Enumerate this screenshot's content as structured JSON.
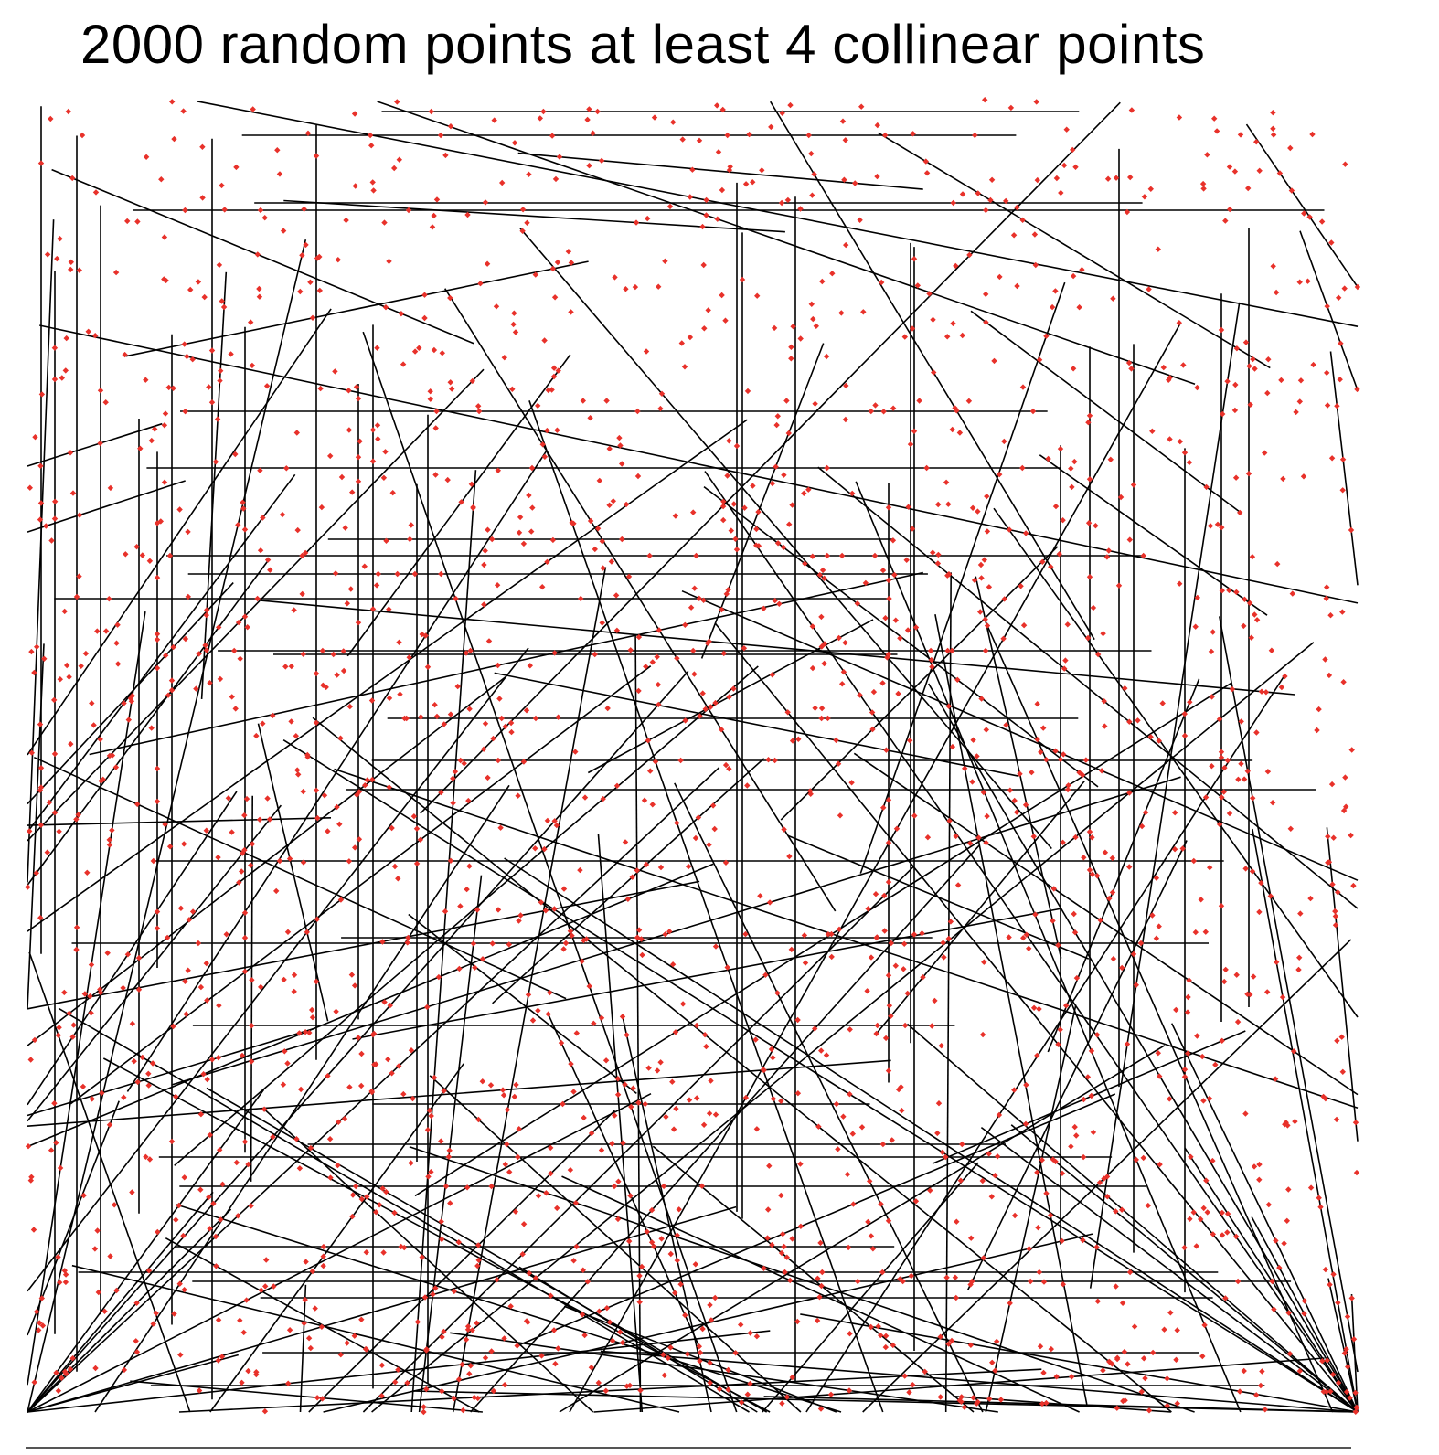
{
  "title": "2000 random points at least 4 collinear points",
  "colors": {
    "point": "#e8312a",
    "segment": "#000000",
    "background": "#ffffff"
  },
  "chart_data": {
    "type": "scatter",
    "points_shown": 2000,
    "random_seed_note": "",
    "segments_present": true
  }
}
